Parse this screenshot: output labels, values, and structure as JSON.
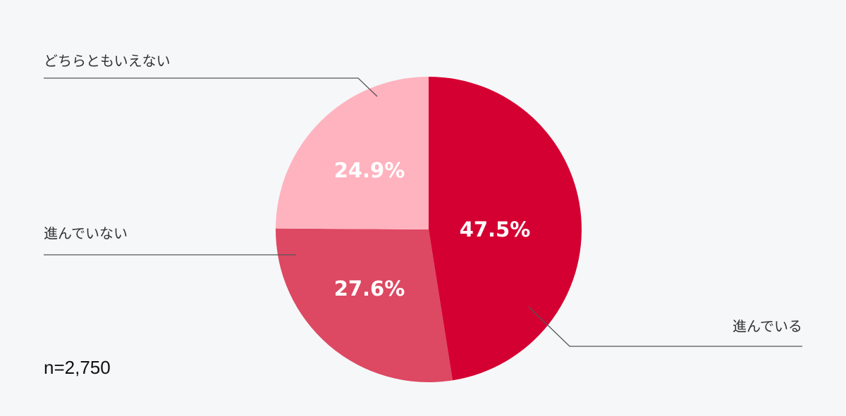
{
  "chart_data": {
    "type": "pie",
    "categories": [
      "進んでいる",
      "進んでいない",
      "どちらともいえない"
    ],
    "values": [
      47.5,
      27.6,
      24.9
    ],
    "value_labels": [
      "47.5%",
      "27.6%",
      "24.9%"
    ],
    "colors": [
      "#d50032",
      "#dd4862",
      "#ffb3bf"
    ],
    "note": "n=2,750"
  }
}
